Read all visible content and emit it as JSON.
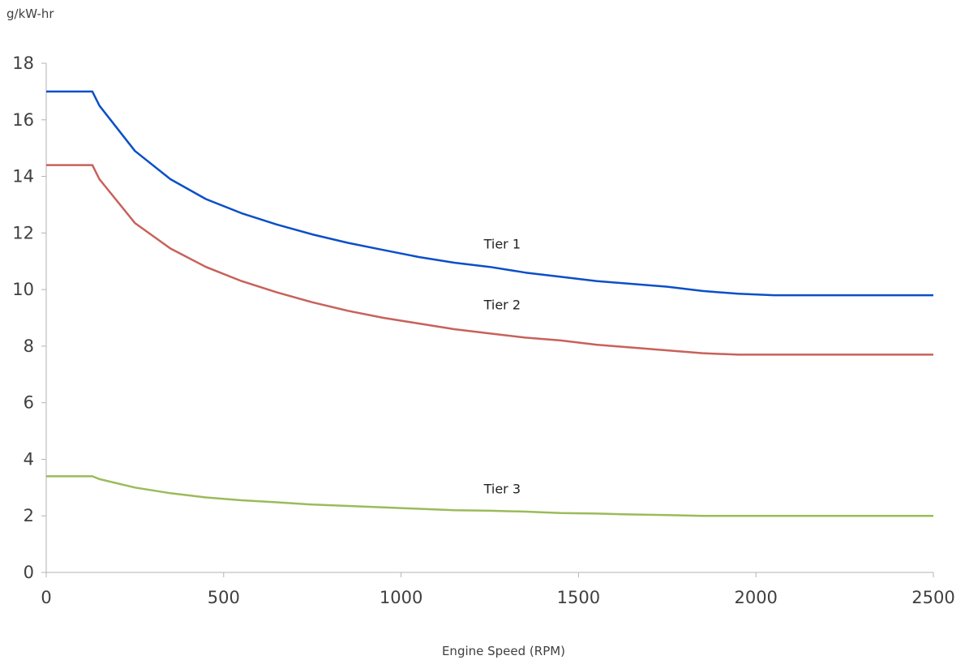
{
  "chart_data": {
    "type": "line",
    "title": "",
    "xlabel": "Engine Speed (RPM)",
    "ylabel": "g/kW-hr",
    "xlim": [
      0,
      2500
    ],
    "ylim": [
      0,
      18
    ],
    "xticks": [
      "0",
      "500",
      "1000",
      "1500",
      "2000",
      "2500"
    ],
    "yticks": [
      "0",
      "2",
      "4",
      "6",
      "8",
      "10",
      "12",
      "14",
      "16",
      "18"
    ],
    "grid": false,
    "legend": "none",
    "series": [
      {
        "name": "Tier 1",
        "color": "#0a4fc8",
        "label_at": [
          1285,
          11.45
        ],
        "x": [
          0,
          130,
          150,
          250,
          350,
          450,
          550,
          650,
          750,
          850,
          950,
          1050,
          1150,
          1250,
          1350,
          1450,
          1550,
          1650,
          1750,
          1850,
          1950,
          2050,
          2500
        ],
        "y": [
          17.0,
          17.0,
          16.5,
          14.9,
          13.9,
          13.2,
          12.7,
          12.3,
          11.95,
          11.65,
          11.4,
          11.15,
          10.95,
          10.8,
          10.6,
          10.45,
          10.3,
          10.2,
          10.1,
          9.95,
          9.85,
          9.8,
          9.8
        ]
      },
      {
        "name": "Tier 2",
        "color": "#c8615a",
        "label_at": [
          1285,
          9.3
        ],
        "x": [
          0,
          130,
          150,
          250,
          350,
          450,
          550,
          650,
          750,
          850,
          950,
          1050,
          1150,
          1250,
          1350,
          1450,
          1550,
          1650,
          1750,
          1850,
          1950,
          2500
        ],
        "y": [
          14.4,
          14.4,
          13.9,
          12.35,
          11.45,
          10.8,
          10.3,
          9.9,
          9.55,
          9.25,
          9.0,
          8.8,
          8.6,
          8.45,
          8.3,
          8.2,
          8.05,
          7.95,
          7.85,
          7.75,
          7.7,
          7.7
        ]
      },
      {
        "name": "Tier 3",
        "color": "#9bbb59",
        "label_at": [
          1285,
          2.8
        ],
        "x": [
          0,
          130,
          150,
          250,
          350,
          450,
          550,
          650,
          750,
          850,
          950,
          1050,
          1150,
          1250,
          1350,
          1450,
          1550,
          1650,
          1750,
          1850,
          1950,
          2050,
          2500
        ],
        "y": [
          3.4,
          3.4,
          3.3,
          3.0,
          2.8,
          2.65,
          2.55,
          2.48,
          2.4,
          2.35,
          2.3,
          2.25,
          2.2,
          2.18,
          2.15,
          2.1,
          2.08,
          2.05,
          2.03,
          2.0,
          2.0,
          2.0,
          2.0
        ]
      }
    ]
  }
}
